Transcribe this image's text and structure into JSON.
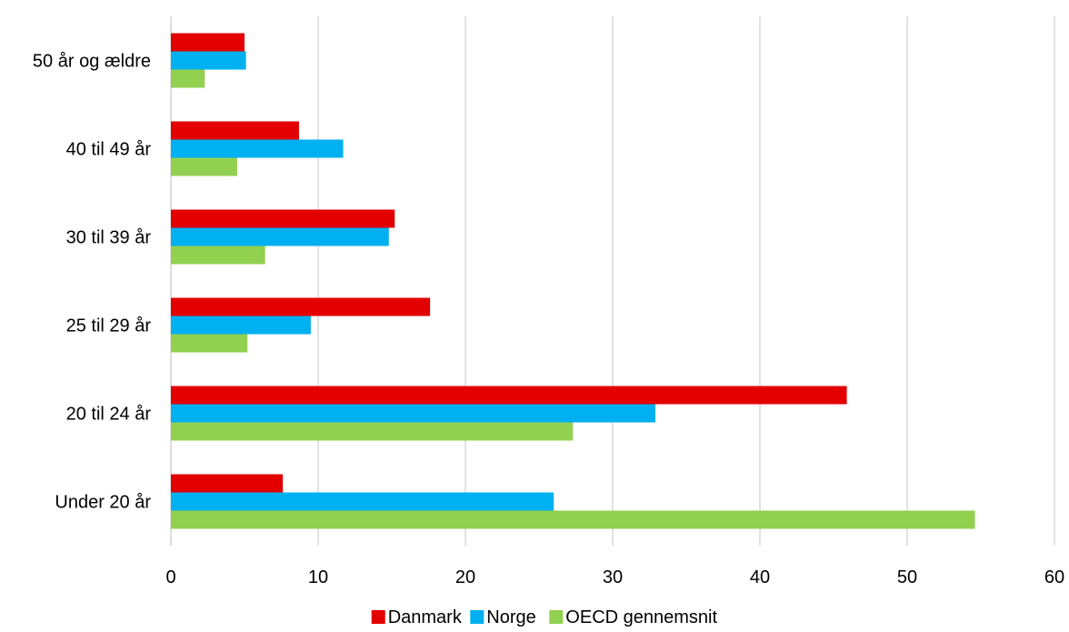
{
  "chart_data": {
    "type": "bar",
    "orientation": "horizontal",
    "categories": [
      "Under 20 år",
      "20 til 24 år",
      "25 til 29 år",
      "30 til 39 år",
      "40 til 49 år",
      "50 år og ældre"
    ],
    "series": [
      {
        "name": "Danmark",
        "color": "#E20000",
        "values": [
          7.6,
          45.9,
          17.6,
          15.2,
          8.7,
          5.0
        ]
      },
      {
        "name": "Norge",
        "color": "#00B0F0",
        "values": [
          26.0,
          32.9,
          9.5,
          14.8,
          11.7,
          5.1
        ]
      },
      {
        "name": "OECD gennemsnit",
        "color": "#92D050",
        "values": [
          54.6,
          27.3,
          5.2,
          6.4,
          4.5,
          2.3
        ]
      }
    ],
    "xlim": [
      0,
      60
    ],
    "xticks": [
      0,
      10,
      20,
      30,
      40,
      50,
      60
    ],
    "grid": true,
    "legend_position": "bottom"
  }
}
